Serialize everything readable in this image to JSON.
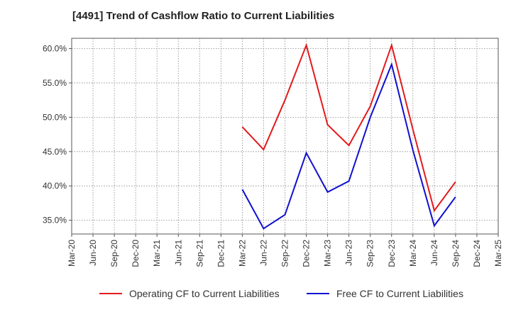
{
  "chart_data": {
    "type": "line",
    "title": "[4491]  Trend of Cashflow Ratio to Current Liabilities",
    "xlabel": "",
    "ylabel": "",
    "categories": [
      "Mar-20",
      "Jun-20",
      "Sep-20",
      "Dec-20",
      "Mar-21",
      "Jun-21",
      "Sep-21",
      "Dec-21",
      "Mar-22",
      "Jun-22",
      "Sep-22",
      "Dec-22",
      "Mar-23",
      "Jun-23",
      "Sep-23",
      "Dec-23",
      "Mar-24",
      "Jun-24",
      "Sep-24",
      "Dec-24",
      "Mar-25"
    ],
    "ylim": [
      33.0,
      61.5
    ],
    "yticks": [
      35.0,
      40.0,
      45.0,
      50.0,
      55.0,
      60.0
    ],
    "ytick_labels": [
      "35.0%",
      "40.0%",
      "45.0%",
      "50.0%",
      "55.0%",
      "60.0%"
    ],
    "grid": true,
    "legend_position": "bottom",
    "series": [
      {
        "name": "Operating CF to Current Liabilities",
        "color": "#e31a1c",
        "values": [
          null,
          null,
          null,
          null,
          null,
          null,
          null,
          null,
          48.6,
          45.3,
          52.5,
          60.5,
          48.9,
          45.9,
          51.6,
          60.5,
          48.2,
          36.4,
          40.6,
          null,
          null
        ]
      },
      {
        "name": "Free CF to Current Liabilities",
        "color": "#1010d0",
        "values": [
          null,
          null,
          null,
          null,
          null,
          null,
          null,
          null,
          39.5,
          33.8,
          35.8,
          44.8,
          39.1,
          40.7,
          50.0,
          57.7,
          45.2,
          34.2,
          38.4,
          null,
          null
        ]
      }
    ]
  }
}
